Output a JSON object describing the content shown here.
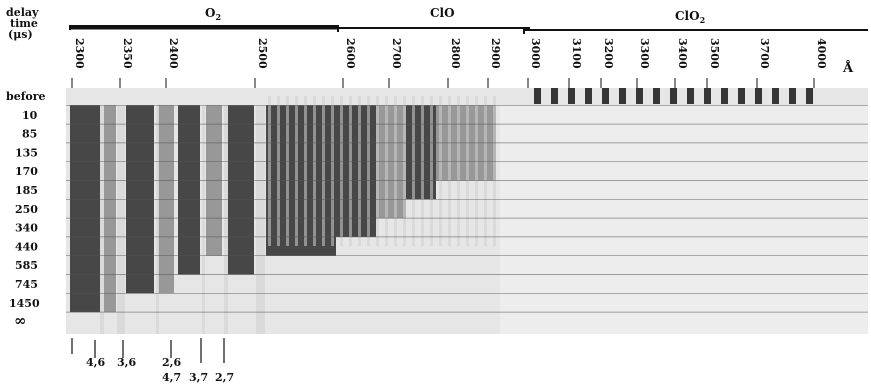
{
  "header": {
    "delay_label_line1": "delay",
    "delay_label_line2": "time",
    "delay_label_line3": "(μs)",
    "species": [
      {
        "label": "O",
        "subscript": "2"
      },
      {
        "label": "ClO",
        "subscript": ""
      },
      {
        "label": "ClO",
        "subscript": "2"
      }
    ]
  },
  "wavelength_scale": {
    "unit": "Å",
    "ticks": [
      "2300",
      "2350",
      "2400",
      "2500",
      "2600",
      "2700",
      "2800",
      "2900",
      "3000",
      "3100",
      "3200",
      "3300",
      "3400",
      "3500",
      "3700",
      "4000"
    ]
  },
  "rows": {
    "labels": [
      "before",
      "10",
      "85",
      "135",
      "170",
      "185",
      "250",
      "340",
      "440",
      "585",
      "745",
      "1450",
      "∞"
    ]
  },
  "band_annotations": {
    "top": [
      "4,6",
      "3,6",
      "2,6"
    ],
    "bottom": [
      "4,7",
      "3,7",
      "2,7"
    ]
  },
  "colors": {
    "ink": "#111111",
    "dark_band": "#2a2a2a",
    "mid_band": "#8a8a8a",
    "light_band": "#d8d8d8",
    "background": "#ffffff"
  }
}
